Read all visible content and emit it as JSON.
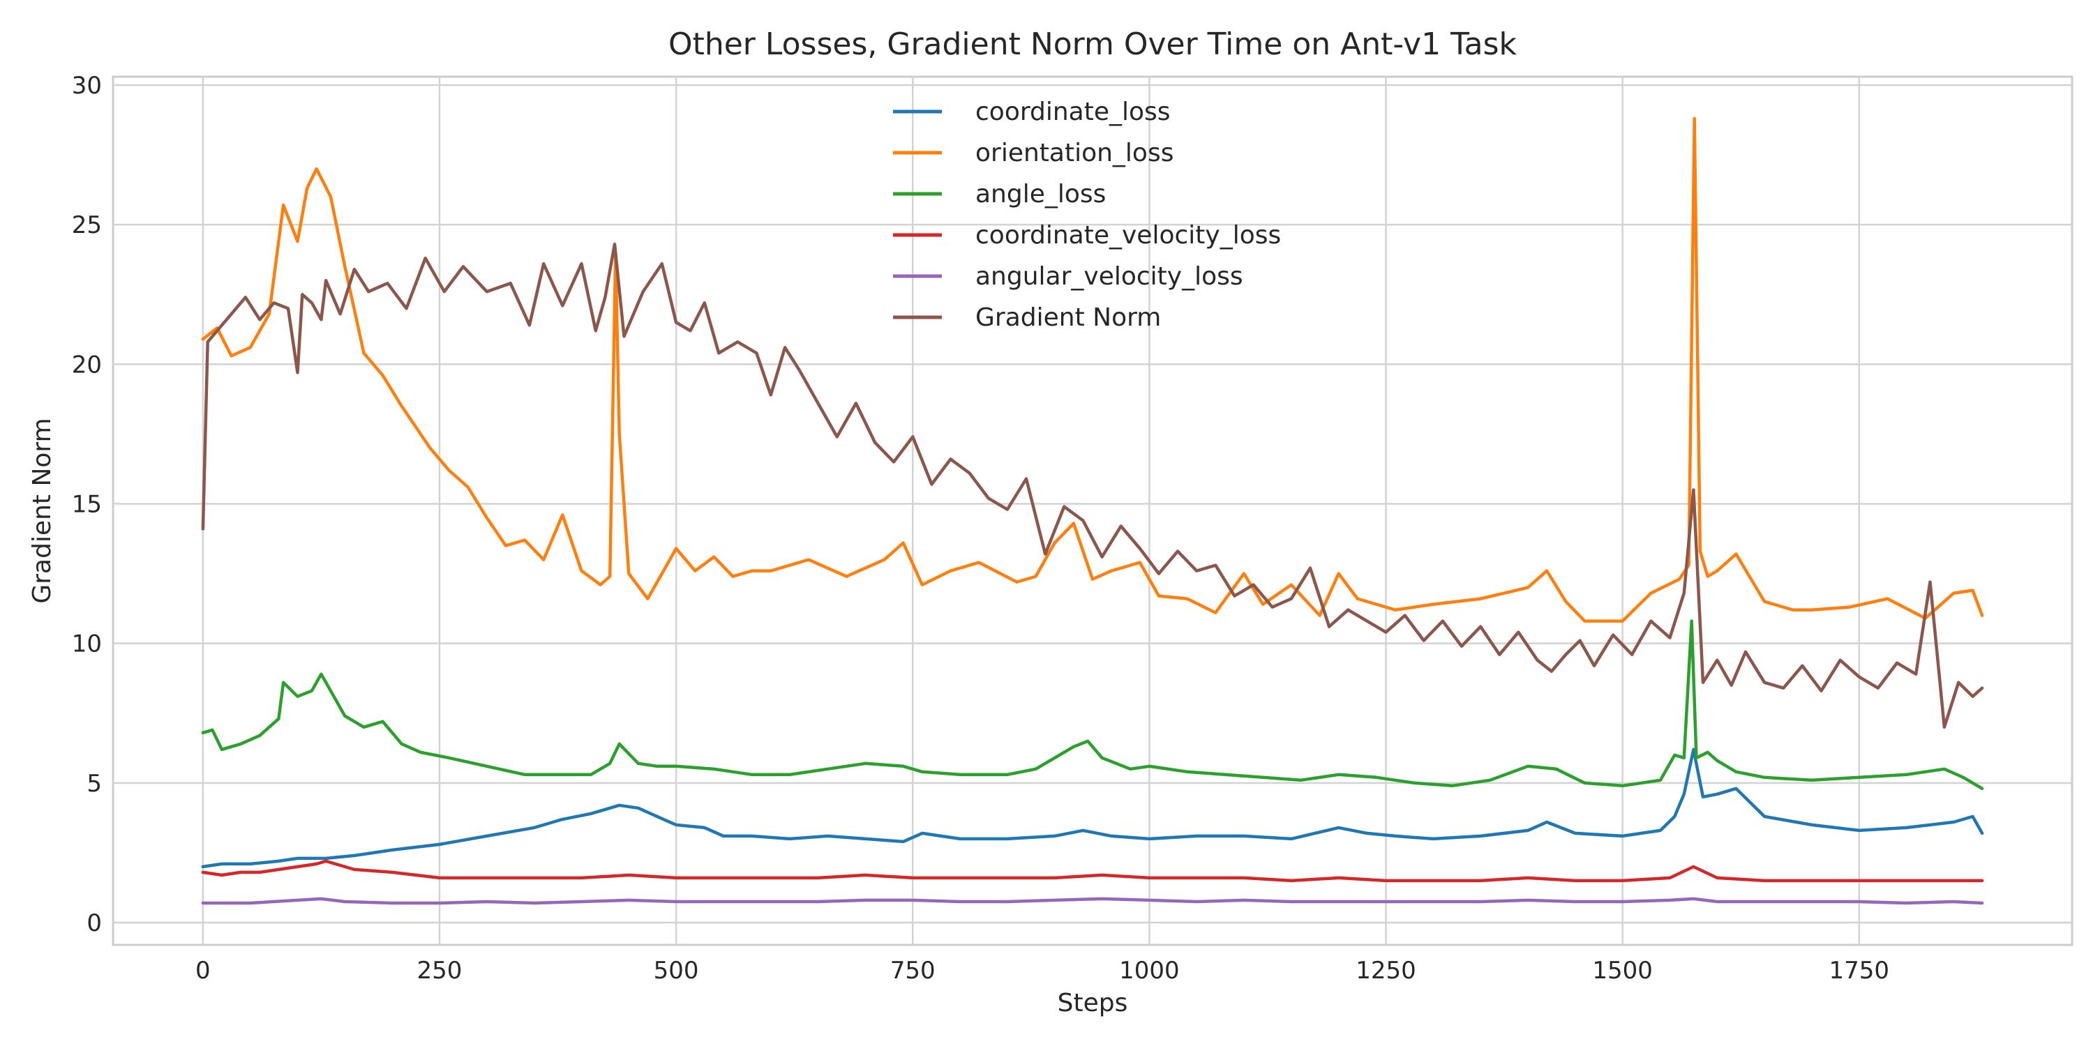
{
  "chart_data": {
    "type": "line",
    "title": "Other Losses, Gradient Norm Over Time on Ant-v1 Task",
    "xlabel": "Steps",
    "ylabel": "Gradient Norm",
    "xlim": [
      -95,
      1975
    ],
    "ylim": [
      -0.8,
      30.3
    ],
    "xticks": [
      0,
      250,
      500,
      750,
      1000,
      1250,
      1500,
      1750
    ],
    "yticks": [
      0,
      5,
      10,
      15,
      20,
      25,
      30
    ],
    "grid": true,
    "legend_position": "upper-center",
    "series": [
      {
        "name": "coordinate_loss",
        "color": "#1f77b4",
        "x": [
          0,
          20,
          50,
          80,
          100,
          130,
          160,
          200,
          250,
          300,
          350,
          380,
          410,
          430,
          440,
          460,
          480,
          500,
          530,
          550,
          580,
          620,
          660,
          700,
          740,
          760,
          800,
          850,
          900,
          930,
          960,
          1000,
          1050,
          1100,
          1150,
          1200,
          1230,
          1260,
          1300,
          1350,
          1400,
          1420,
          1450,
          1500,
          1540,
          1555,
          1565,
          1575,
          1585,
          1600,
          1620,
          1650,
          1700,
          1750,
          1800,
          1850,
          1870,
          1880
        ],
        "values": [
          2.0,
          2.1,
          2.1,
          2.2,
          2.3,
          2.3,
          2.4,
          2.6,
          2.8,
          3.1,
          3.4,
          3.7,
          3.9,
          4.1,
          4.2,
          4.1,
          3.8,
          3.5,
          3.4,
          3.1,
          3.1,
          3.0,
          3.1,
          3.0,
          2.9,
          3.2,
          3.0,
          3.0,
          3.1,
          3.3,
          3.1,
          3.0,
          3.1,
          3.1,
          3.0,
          3.4,
          3.2,
          3.1,
          3.0,
          3.1,
          3.3,
          3.6,
          3.2,
          3.1,
          3.3,
          3.8,
          4.6,
          6.2,
          4.5,
          4.6,
          4.8,
          3.8,
          3.5,
          3.3,
          3.4,
          3.6,
          3.8,
          3.2
        ]
      },
      {
        "name": "orientation_loss",
        "color": "#ff7f0e",
        "x": [
          0,
          15,
          30,
          50,
          70,
          85,
          100,
          110,
          120,
          135,
          150,
          170,
          190,
          210,
          240,
          260,
          280,
          300,
          320,
          340,
          360,
          380,
          400,
          420,
          430,
          436,
          440,
          450,
          470,
          490,
          500,
          520,
          540,
          560,
          580,
          600,
          640,
          680,
          720,
          740,
          760,
          790,
          820,
          860,
          880,
          900,
          920,
          940,
          960,
          990,
          1010,
          1040,
          1070,
          1100,
          1120,
          1150,
          1180,
          1200,
          1220,
          1260,
          1300,
          1350,
          1400,
          1420,
          1440,
          1460,
          1500,
          1530,
          1560,
          1570,
          1576,
          1582,
          1590,
          1600,
          1620,
          1650,
          1680,
          1700,
          1740,
          1780,
          1820,
          1850,
          1870,
          1880
        ],
        "values": [
          20.9,
          21.3,
          20.3,
          20.6,
          21.8,
          25.7,
          24.4,
          26.3,
          27.0,
          26.0,
          23.5,
          20.4,
          19.6,
          18.5,
          17.0,
          16.2,
          15.6,
          14.5,
          13.5,
          13.7,
          13.0,
          14.6,
          12.6,
          12.1,
          12.4,
          24.0,
          17.5,
          12.5,
          11.6,
          12.8,
          13.4,
          12.6,
          13.1,
          12.4,
          12.6,
          12.6,
          13.0,
          12.4,
          13.0,
          13.6,
          12.1,
          12.6,
          12.9,
          12.2,
          12.4,
          13.6,
          14.3,
          12.3,
          12.6,
          12.9,
          11.7,
          11.6,
          11.1,
          12.5,
          11.4,
          12.1,
          11.0,
          12.5,
          11.6,
          11.2,
          11.4,
          11.6,
          12.0,
          12.6,
          11.5,
          10.8,
          10.8,
          11.8,
          12.3,
          12.8,
          28.8,
          13.3,
          12.4,
          12.6,
          13.2,
          11.5,
          11.2,
          11.2,
          11.3,
          11.6,
          10.9,
          11.8,
          11.9,
          11.0
        ]
      },
      {
        "name": "angle_loss",
        "color": "#2ca02c",
        "x": [
          0,
          10,
          20,
          40,
          60,
          80,
          85,
          100,
          115,
          125,
          135,
          150,
          170,
          190,
          210,
          230,
          260,
          300,
          340,
          380,
          410,
          430,
          440,
          460,
          480,
          500,
          540,
          580,
          620,
          660,
          700,
          740,
          760,
          800,
          850,
          880,
          920,
          935,
          950,
          980,
          1000,
          1040,
          1080,
          1120,
          1160,
          1200,
          1240,
          1280,
          1320,
          1360,
          1400,
          1430,
          1460,
          1500,
          1540,
          1555,
          1565,
          1573,
          1578,
          1590,
          1600,
          1620,
          1650,
          1700,
          1750,
          1800,
          1840,
          1860,
          1880
        ],
        "values": [
          6.8,
          6.9,
          6.2,
          6.4,
          6.7,
          7.3,
          8.6,
          8.1,
          8.3,
          8.9,
          8.3,
          7.4,
          7.0,
          7.2,
          6.4,
          6.1,
          5.9,
          5.6,
          5.3,
          5.3,
          5.3,
          5.7,
          6.4,
          5.7,
          5.6,
          5.6,
          5.5,
          5.3,
          5.3,
          5.5,
          5.7,
          5.6,
          5.4,
          5.3,
          5.3,
          5.5,
          6.3,
          6.5,
          5.9,
          5.5,
          5.6,
          5.4,
          5.3,
          5.2,
          5.1,
          5.3,
          5.2,
          5.0,
          4.9,
          5.1,
          5.6,
          5.5,
          5.0,
          4.9,
          5.1,
          6.0,
          5.9,
          10.8,
          5.9,
          6.1,
          5.8,
          5.4,
          5.2,
          5.1,
          5.2,
          5.3,
          5.5,
          5.2,
          4.8
        ]
      },
      {
        "name": "coordinate_velocity_loss",
        "color": "#d62728",
        "x": [
          0,
          20,
          40,
          60,
          80,
          100,
          120,
          130,
          140,
          160,
          200,
          250,
          300,
          350,
          400,
          450,
          500,
          550,
          600,
          650,
          700,
          750,
          800,
          850,
          900,
          950,
          1000,
          1050,
          1100,
          1150,
          1200,
          1250,
          1300,
          1350,
          1400,
          1450,
          1500,
          1550,
          1575,
          1600,
          1650,
          1700,
          1750,
          1800,
          1850,
          1880
        ],
        "values": [
          1.8,
          1.7,
          1.8,
          1.8,
          1.9,
          2.0,
          2.1,
          2.2,
          2.1,
          1.9,
          1.8,
          1.6,
          1.6,
          1.6,
          1.6,
          1.7,
          1.6,
          1.6,
          1.6,
          1.6,
          1.7,
          1.6,
          1.6,
          1.6,
          1.6,
          1.7,
          1.6,
          1.6,
          1.6,
          1.5,
          1.6,
          1.5,
          1.5,
          1.5,
          1.6,
          1.5,
          1.5,
          1.6,
          2.0,
          1.6,
          1.5,
          1.5,
          1.5,
          1.5,
          1.5,
          1.5
        ]
      },
      {
        "name": "angular_velocity_loss",
        "color": "#9467bd",
        "x": [
          0,
          50,
          100,
          125,
          150,
          200,
          250,
          300,
          350,
          400,
          450,
          500,
          550,
          600,
          650,
          700,
          750,
          800,
          850,
          900,
          950,
          1000,
          1050,
          1100,
          1150,
          1200,
          1250,
          1300,
          1350,
          1400,
          1450,
          1500,
          1550,
          1575,
          1600,
          1650,
          1700,
          1750,
          1800,
          1850,
          1880
        ],
        "values": [
          0.7,
          0.7,
          0.8,
          0.85,
          0.75,
          0.7,
          0.7,
          0.75,
          0.7,
          0.75,
          0.8,
          0.75,
          0.75,
          0.75,
          0.75,
          0.8,
          0.8,
          0.75,
          0.75,
          0.8,
          0.85,
          0.8,
          0.75,
          0.8,
          0.75,
          0.75,
          0.75,
          0.75,
          0.75,
          0.8,
          0.75,
          0.75,
          0.8,
          0.85,
          0.75,
          0.75,
          0.75,
          0.75,
          0.7,
          0.75,
          0.7
        ]
      },
      {
        "name": "Gradient Norm",
        "color": "#8c564b",
        "x": [
          0,
          5,
          15,
          30,
          45,
          60,
          75,
          90,
          100,
          105,
          115,
          125,
          130,
          145,
          160,
          175,
          195,
          215,
          235,
          255,
          275,
          300,
          325,
          345,
          360,
          380,
          400,
          415,
          425,
          435,
          445,
          465,
          485,
          500,
          515,
          530,
          545,
          565,
          585,
          600,
          615,
          630,
          650,
          670,
          690,
          710,
          730,
          750,
          770,
          790,
          810,
          830,
          850,
          870,
          890,
          910,
          930,
          950,
          970,
          990,
          1010,
          1030,
          1050,
          1070,
          1090,
          1110,
          1130,
          1150,
          1170,
          1190,
          1210,
          1230,
          1250,
          1270,
          1290,
          1310,
          1330,
          1350,
          1370,
          1390,
          1410,
          1425,
          1440,
          1455,
          1470,
          1490,
          1510,
          1530,
          1550,
          1565,
          1575,
          1585,
          1600,
          1615,
          1630,
          1650,
          1670,
          1690,
          1710,
          1730,
          1750,
          1770,
          1790,
          1810,
          1825,
          1840,
          1855,
          1870,
          1880
        ],
        "values": [
          14.1,
          20.8,
          21.2,
          21.8,
          22.4,
          21.6,
          22.2,
          22.0,
          19.7,
          22.5,
          22.2,
          21.6,
          23.0,
          21.8,
          23.4,
          22.6,
          22.9,
          22.0,
          23.8,
          22.6,
          23.5,
          22.6,
          22.9,
          21.4,
          23.6,
          22.1,
          23.6,
          21.2,
          22.4,
          24.3,
          21.0,
          22.6,
          23.6,
          21.5,
          21.2,
          22.2,
          20.4,
          20.8,
          20.4,
          18.9,
          20.6,
          19.8,
          18.6,
          17.4,
          18.6,
          17.2,
          16.5,
          17.4,
          15.7,
          16.6,
          16.1,
          15.2,
          14.8,
          15.9,
          13.2,
          14.9,
          14.4,
          13.1,
          14.2,
          13.4,
          12.5,
          13.3,
          12.6,
          12.8,
          11.7,
          12.1,
          11.3,
          11.6,
          12.7,
          10.6,
          11.2,
          10.8,
          10.4,
          11.0,
          10.1,
          10.8,
          9.9,
          10.6,
          9.6,
          10.4,
          9.4,
          9.0,
          9.6,
          10.1,
          9.2,
          10.3,
          9.6,
          10.8,
          10.2,
          11.8,
          15.5,
          8.6,
          9.4,
          8.5,
          9.7,
          8.6,
          8.4,
          9.2,
          8.3,
          9.4,
          8.8,
          8.4,
          9.3,
          8.9,
          12.2,
          7.0,
          8.6,
          8.1,
          8.4
        ]
      }
    ]
  }
}
